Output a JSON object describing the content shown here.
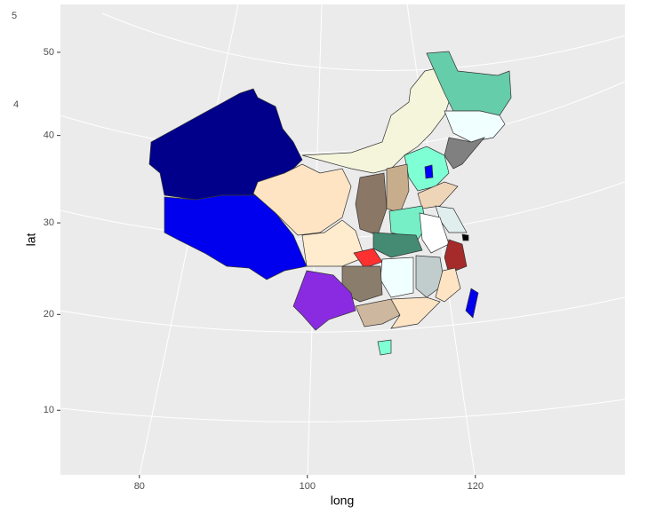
{
  "chart_data": {
    "type": "map",
    "x_label": "long",
    "y_label": "lat",
    "xlim": [
      70.6,
      137.8
    ],
    "ylim": [
      3.5,
      56
    ],
    "xticks": [
      80,
      100,
      120
    ],
    "yticks": [
      10,
      20,
      30,
      40,
      50
    ],
    "side_notes": [
      "5",
      "4"
    ]
  }
}
